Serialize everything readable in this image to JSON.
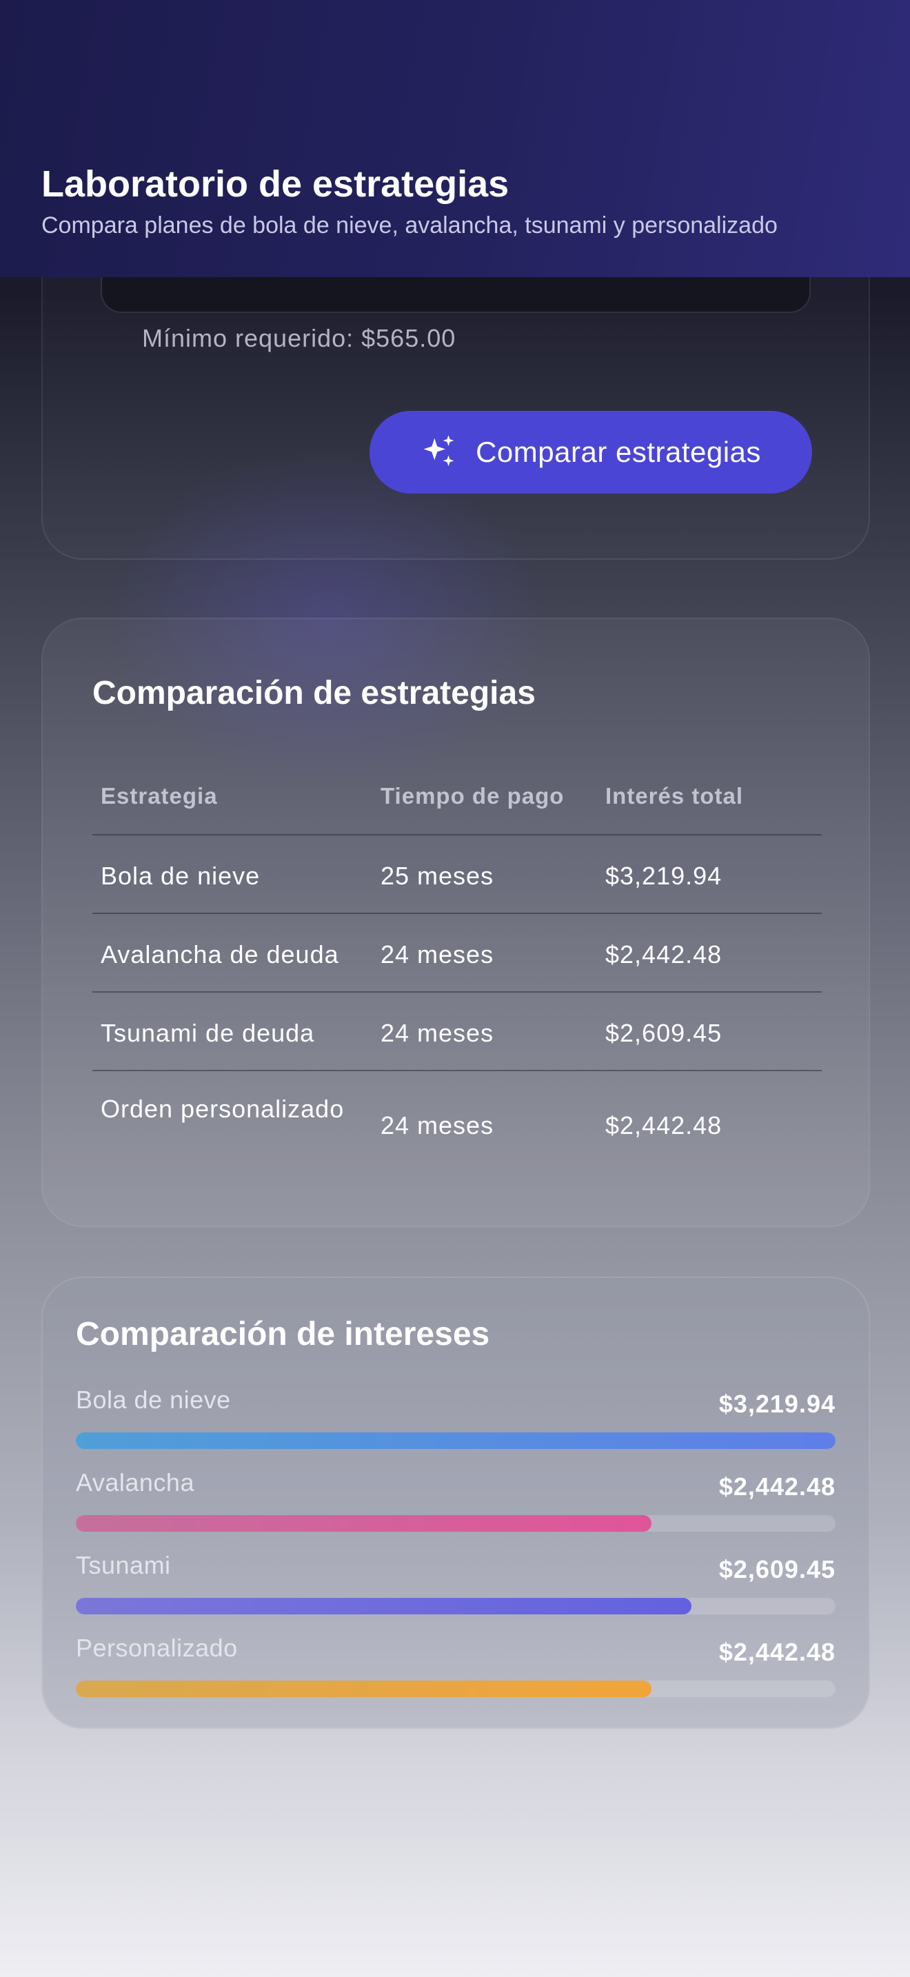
{
  "header": {
    "title": "Laboratorio de estrategias",
    "subtitle": "Compara planes de bola de nieve, avalancha, tsunami y personalizado"
  },
  "config": {
    "minimum_required": "Mínimo requerido: $565.00",
    "compare_button_label": "Comparar estrategias",
    "compare_button_icon": "sparkles-icon",
    "accent_color": "#4b45d6"
  },
  "comparison_table": {
    "title": "Comparación de estrategias",
    "headers": [
      "Estrategia",
      "Tiempo de pago",
      "Interés total"
    ],
    "rows": [
      {
        "strategy": "Bola de nieve",
        "time": "25 meses",
        "interest": "$3,219.94"
      },
      {
        "strategy": "Avalancha de deuda",
        "time": "24 meses",
        "interest": "$2,442.48"
      },
      {
        "strategy": "Tsunami de deuda",
        "time": "24 meses",
        "interest": "$2,609.45"
      },
      {
        "strategy": "Orden personalizado",
        "time": "24 meses",
        "interest": "$2,442.48"
      }
    ]
  },
  "interest_comparison": {
    "title": "Comparación de intereses",
    "bars": [
      {
        "label": "Bola de nieve",
        "value": "$3,219.94",
        "fraction": 1.0,
        "color_start": "#4f9fd8",
        "color_end": "#5f7ee8"
      },
      {
        "label": "Avalancha",
        "value": "$2,442.48",
        "fraction": 0.758,
        "color_start": "#c56f9c",
        "color_end": "#e0559a"
      },
      {
        "label": "Tsunami",
        "value": "$2,609.45",
        "fraction": 0.81,
        "color_start": "#7b77d8",
        "color_end": "#6461e0"
      },
      {
        "label": "Personalizado",
        "value": "$2,442.48",
        "fraction": 0.758,
        "color_start": "#d9a850",
        "color_end": "#f0a53a"
      }
    ]
  }
}
